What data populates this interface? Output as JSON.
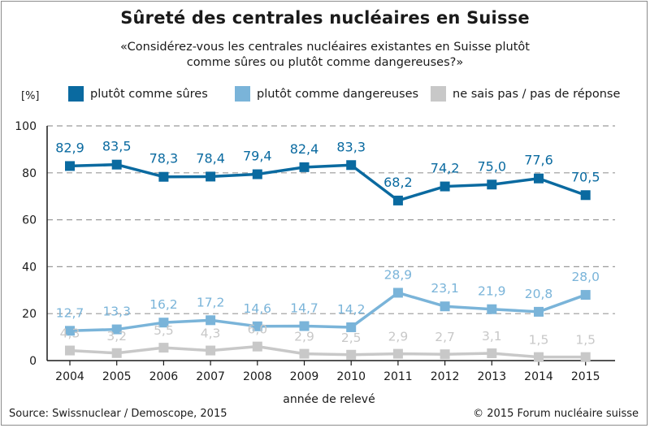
{
  "title": "Sûreté des centrales nucléaires en Suisse",
  "subtitle_line1": "«Considérez-vous les centrales nucléaires existantes en Suisse plutôt",
  "subtitle_line2": "comme sûres ou plutôt comme dangereuses?»",
  "unit_label": "[%]",
  "source": "Source: Swissnuclear / Demoscope, 2015",
  "copyright": "© 2015 Forum nucléaire suisse",
  "chart_data": {
    "type": "line",
    "title": "Sûreté des centrales nucléaires en Suisse",
    "xlabel": "année de relevé",
    "ylabel": "[%]",
    "ylim": [
      0,
      100
    ],
    "yticks": [
      "0",
      "20",
      "40",
      "60",
      "80",
      "100"
    ],
    "grid": true,
    "legend_position": "top",
    "x": [
      "2004",
      "2005",
      "2006",
      "2007",
      "2008",
      "2009",
      "2010",
      "2011",
      "2012",
      "2013",
      "2014",
      "2015"
    ],
    "series": [
      {
        "name": "plutôt comme sûres",
        "color": "#0a6aa0",
        "values": [
          82.9,
          83.5,
          78.3,
          78.4,
          79.4,
          82.4,
          83.3,
          68.2,
          74.2,
          75.0,
          77.6,
          70.5
        ],
        "labels": [
          "82,9",
          "83,5",
          "78,3",
          "78,4",
          "79,4",
          "82,4",
          "83,3",
          "68,2",
          "74,2",
          "75,0",
          "77,6",
          "70,5"
        ]
      },
      {
        "name": "plutôt comme dangereuses",
        "color": "#7ab4d9",
        "values": [
          12.7,
          13.3,
          16.2,
          17.2,
          14.6,
          14.7,
          14.2,
          28.9,
          23.1,
          21.9,
          20.8,
          28.0
        ],
        "labels": [
          "12,7",
          "13,3",
          "16,2",
          "17,2",
          "14,6",
          "14,7",
          "14,2",
          "28,9",
          "23,1",
          "21,9",
          "20,8",
          "28,0"
        ]
      },
      {
        "name": "ne sais pas / pas de réponse",
        "color": "#c8c8c8",
        "values": [
          4.3,
          3.2,
          5.5,
          4.3,
          6.0,
          2.9,
          2.5,
          2.9,
          2.7,
          3.1,
          1.5,
          1.5
        ],
        "labels": [
          "4,3",
          "3,2",
          "5,5",
          "4,3",
          "6,0",
          "2,9",
          "2,5",
          "2,9",
          "2,7",
          "3,1",
          "1,5",
          "1,5"
        ]
      }
    ]
  }
}
